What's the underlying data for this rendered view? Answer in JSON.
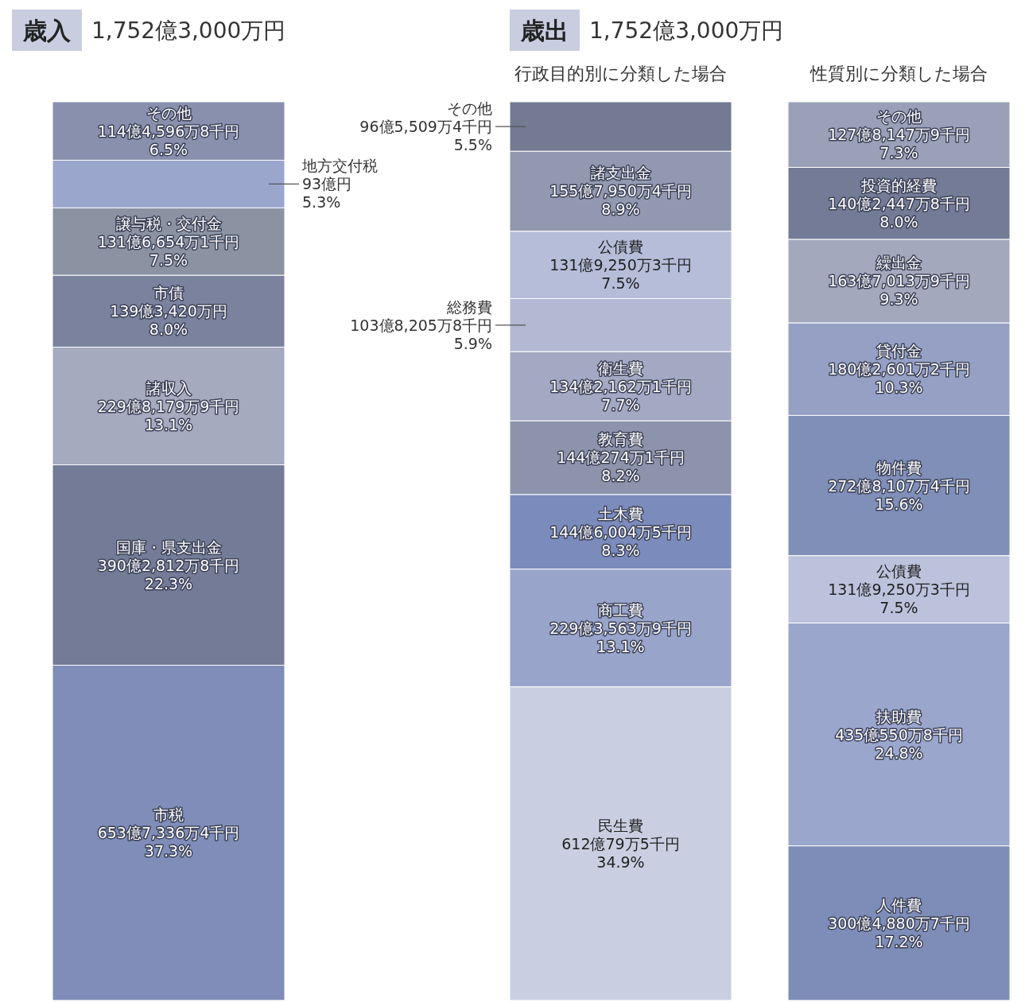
{
  "chart_data": [
    {
      "type": "bar",
      "stacked": true,
      "title": "歳入",
      "subtitle": "1,752億3,000万円",
      "categories": [
        null
      ],
      "series": [
        {
          "name": "市税",
          "color": "#7f8db8",
          "values": [
            37.3
          ],
          "value_labels": [
            "653億7,336万4千円 37.3%"
          ]
        },
        {
          "name": "国庫・県支出金",
          "color": "#737b96",
          "values": [
            22.3
          ],
          "value_labels": [
            "390億2,812万8千円 22.3%"
          ]
        },
        {
          "name": "諸収入",
          "color": "#a5aabf",
          "values": [
            13.1
          ],
          "value_labels": [
            "229億8,179万9千円 13.1%"
          ]
        },
        {
          "name": "市債",
          "color": "#7a829e",
          "values": [
            8.0
          ],
          "value_labels": [
            "139億3,420万円 8.0%"
          ]
        },
        {
          "name": "譲与税・交付金",
          "color": "#8b93a3",
          "values": [
            7.5
          ],
          "value_labels": [
            "131億6,654万1千円 7.5%"
          ]
        },
        {
          "name": "地方交付税",
          "color": "#9aa6cc",
          "values": [
            5.3
          ],
          "value_labels": [
            "93億円 5.3%"
          ]
        },
        {
          "name": "その他",
          "color": "#8890ad",
          "values": [
            6.5
          ],
          "value_labels": [
            "114億4,596万8千円 6.5%"
          ]
        }
      ]
    },
    {
      "type": "bar",
      "stacked": true,
      "title": "歳出",
      "subtitle": "1,752億3,000万円",
      "annotations": [
        "行政目的別に分類した場合"
      ],
      "categories": [
        null
      ],
      "series": [
        {
          "name": "民生費",
          "color": "#c9cfe0",
          "values": [
            34.9
          ],
          "value_labels": [
            "612億79万5千円 34.9%"
          ]
        },
        {
          "name": "商工費",
          "color": "#98a4c9",
          "values": [
            13.1
          ],
          "value_labels": [
            "229億3,563万9千円 13.1%"
          ]
        },
        {
          "name": "土木費",
          "color": "#7b8bbb",
          "values": [
            8.3
          ],
          "value_labels": [
            "144億6,004万5千円 8.3%"
          ]
        },
        {
          "name": "教育費",
          "color": "#8c93ab",
          "values": [
            8.2
          ],
          "value_labels": [
            "144億274万1千円 8.2%"
          ]
        },
        {
          "name": "衛生費",
          "color": "#a3a9c2",
          "values": [
            7.7
          ],
          "value_labels": [
            "134億2,162万1千円 7.7%"
          ]
        },
        {
          "name": "総務費",
          "color": "#b3b9d2",
          "values": [
            5.9
          ],
          "value_labels": [
            "103億8,205万8千円 5.9%"
          ]
        },
        {
          "name": "公債費",
          "color": "#b5bdd9",
          "values": [
            7.5
          ],
          "value_labels": [
            "131億9,250万3千円 7.5%"
          ]
        },
        {
          "name": "諸支出金",
          "color": "#9198b0",
          "values": [
            8.9
          ],
          "value_labels": [
            "155億7,950万4千円 8.9%"
          ]
        },
        {
          "name": "その他",
          "color": "#737a92",
          "values": [
            5.5
          ],
          "value_labels": [
            "96億5,509万4千円 5.5%"
          ]
        }
      ]
    },
    {
      "type": "bar",
      "stacked": true,
      "title": "性質別に分類した場合",
      "categories": [
        null
      ],
      "series": [
        {
          "name": "人件費",
          "color": "#7e8db8",
          "values": [
            17.2
          ],
          "value_labels": [
            "300億4,880万7千円 17.2%"
          ]
        },
        {
          "name": "扶助費",
          "color": "#9aa6cc",
          "values": [
            24.8
          ],
          "value_labels": [
            "435億550万8千円 24.8%"
          ]
        },
        {
          "name": "公債費",
          "color": "#bcc2dc",
          "values": [
            7.5
          ],
          "value_labels": [
            "131億9,250万3千円 7.5%"
          ]
        },
        {
          "name": "物件費",
          "color": "#7f8fb8",
          "values": [
            15.6
          ],
          "value_labels": [
            "272億8,107万4千円 15.6%"
          ]
        },
        {
          "name": "貸付金",
          "color": "#95a0c4",
          "values": [
            10.3
          ],
          "value_labels": [
            "180億2,601万2千円 10.3%"
          ]
        },
        {
          "name": "繰出金",
          "color": "#a3a8bd",
          "values": [
            9.3
          ],
          "value_labels": [
            "163億7,013万9千円 9.3%"
          ]
        },
        {
          "name": "投資的経費",
          "color": "#737b96",
          "values": [
            8.0
          ],
          "value_labels": [
            "140億2,447万8千円 8.0%"
          ]
        },
        {
          "name": "その他",
          "color": "#9aa0b8",
          "values": [
            7.3
          ],
          "value_labels": [
            "127億8,147万9千円 7.3%"
          ]
        }
      ]
    }
  ]
}
